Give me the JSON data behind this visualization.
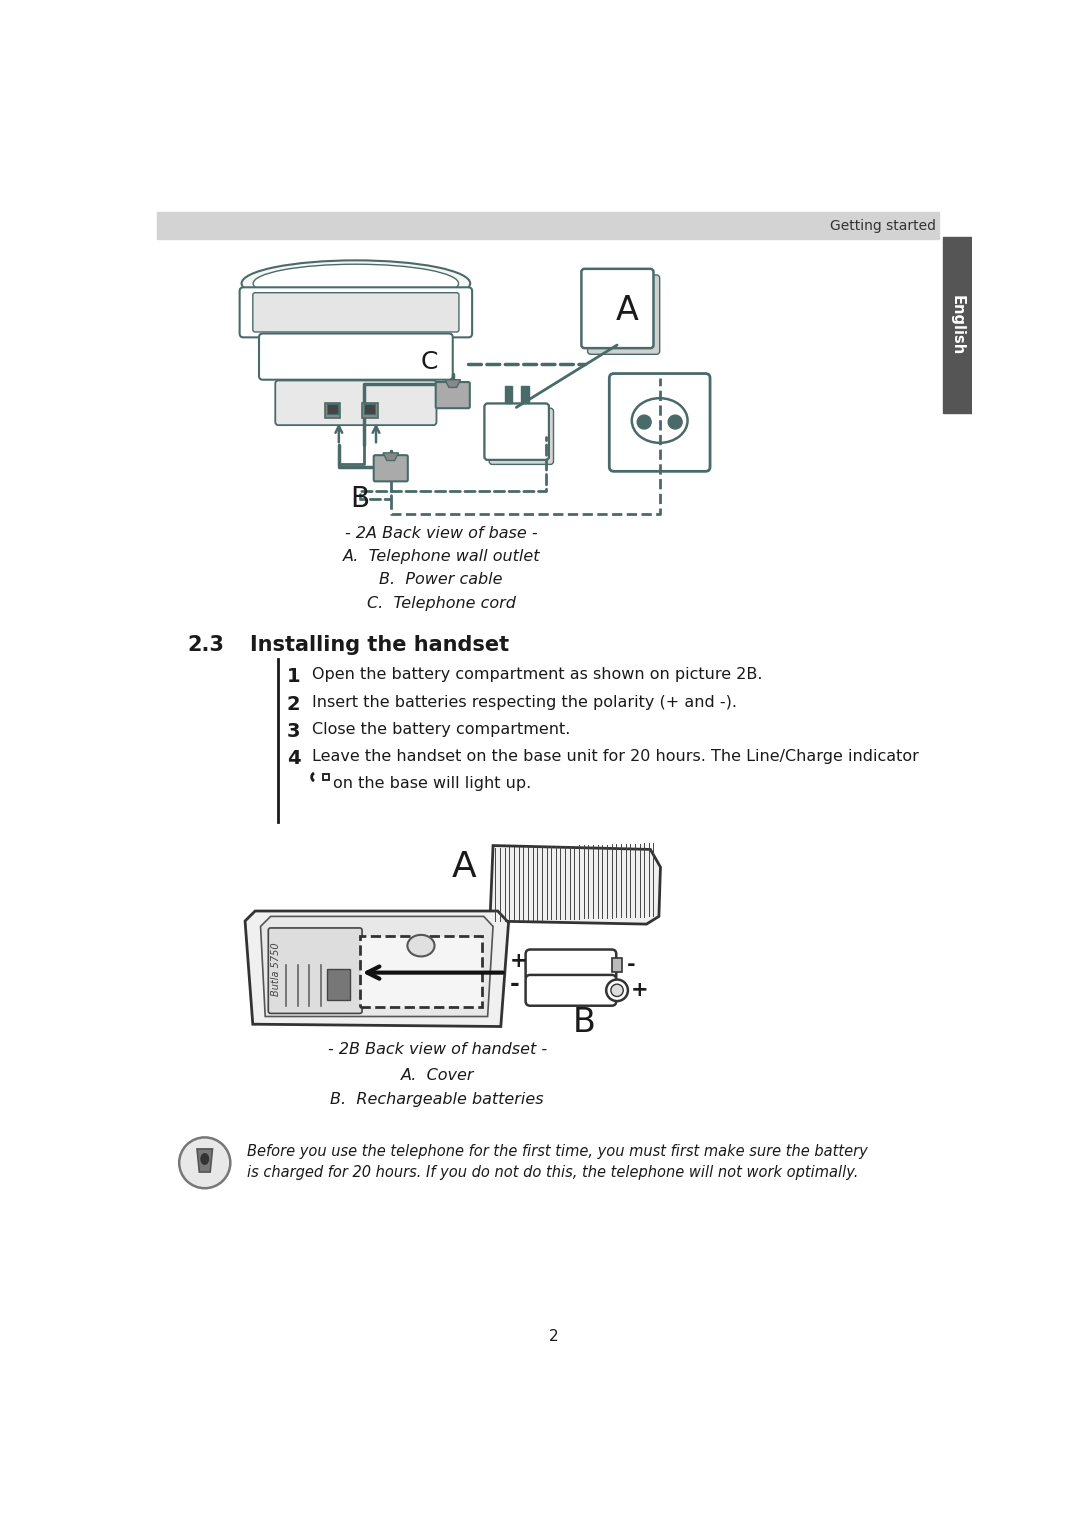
{
  "page_bg": "#ffffff",
  "header_bg": "#d3d3d3",
  "header_text": "Getting started",
  "tab_bg": "#555555",
  "tab_text": "English",
  "diagram_color": "#4a6a6a",
  "dark": "#1a1a1a",
  "mid": "#555555",
  "light_gray": "#cccccc",
  "caption_2a": "- 2A Back view of base -",
  "caption_2a_items": [
    "A.  Telephone wall outlet",
    "B.  Power cable",
    "C.  Telephone cord"
  ],
  "section_num": "2.3",
  "section_title": "Installing the handset",
  "steps": [
    {
      "num": "1",
      "text": "Open the battery compartment as shown on picture 2B."
    },
    {
      "num": "2",
      "text": "Insert the batteries respecting the polarity (+ and -)."
    },
    {
      "num": "3",
      "text": "Close the battery compartment."
    },
    {
      "num": "4",
      "text": "Leave the handset on the base unit for 20 hours. The Line/Charge indicator"
    }
  ],
  "step4_cont": "on the base will light up.",
  "caption_2b": "- 2B Back view of handset -",
  "caption_2b_items": [
    "A.  Cover",
    "B.  Rechargeable batteries"
  ],
  "warning_line1": "Before you use the telephone for the first time, you must first make sure the battery",
  "warning_line2": "is charged for 20 hours. If you do not do this, the telephone will not work optimally.",
  "page_num": "2"
}
